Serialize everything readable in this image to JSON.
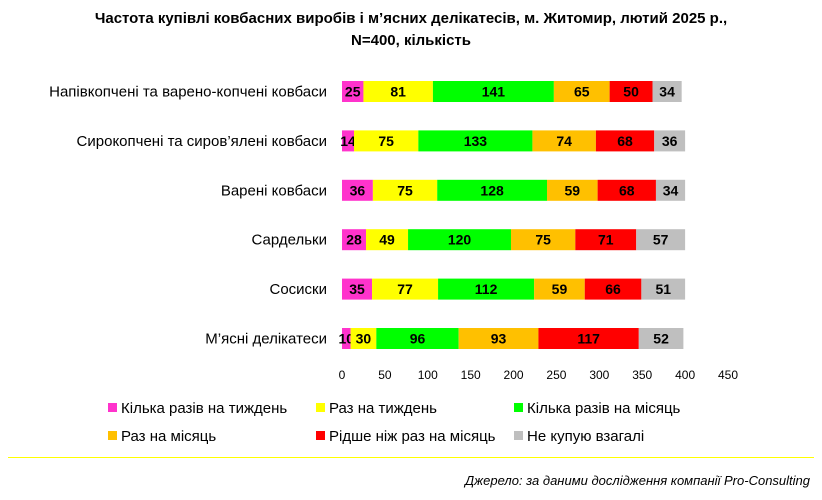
{
  "chart_data": {
    "type": "bar",
    "orientation": "horizontal",
    "stacked": true,
    "title_lines": [
      "Частота купівлі ковбасних виробів і м’ясних делікатесів, м. Житомир, лютий 2025 р.,",
      "N=400, кількість"
    ],
    "categories": [
      "Напівкопчені та варено-копчені ковбаси",
      "Сирокопчені та сиров’ялені ковбаси",
      "Варені ковбаси",
      "Сардельки",
      "Сосиски",
      "М’ясні делікатеси"
    ],
    "series": [
      {
        "name": "Кілька разів на тиждень",
        "color": "#ff33cc",
        "values": [
          25,
          14,
          36,
          28,
          35,
          10
        ]
      },
      {
        "name": "Раз на тиждень",
        "color": "#ffff00",
        "values": [
          81,
          75,
          75,
          49,
          77,
          30
        ]
      },
      {
        "name": "Кілька разів на місяць",
        "color": "#00ff00",
        "values": [
          141,
          133,
          128,
          120,
          112,
          96
        ]
      },
      {
        "name": "Раз на місяць",
        "color": "#ffc000",
        "values": [
          65,
          74,
          59,
          75,
          59,
          93
        ]
      },
      {
        "name": "Рідше ніж раз на місяць",
        "color": "#ff0000",
        "values": [
          50,
          68,
          68,
          71,
          66,
          117
        ]
      },
      {
        "name": "Не купую взагалі",
        "color": "#bfbfbf",
        "values": [
          34,
          36,
          34,
          57,
          51,
          52
        ]
      }
    ],
    "xlim": [
      0,
      450
    ],
    "xticks": [
      0,
      50,
      100,
      150,
      200,
      250,
      300,
      350,
      400,
      450
    ],
    "grid": false,
    "legend_position": "bottom"
  },
  "source": "Джерело: за даними дослідження компанії Pro-Consulting"
}
